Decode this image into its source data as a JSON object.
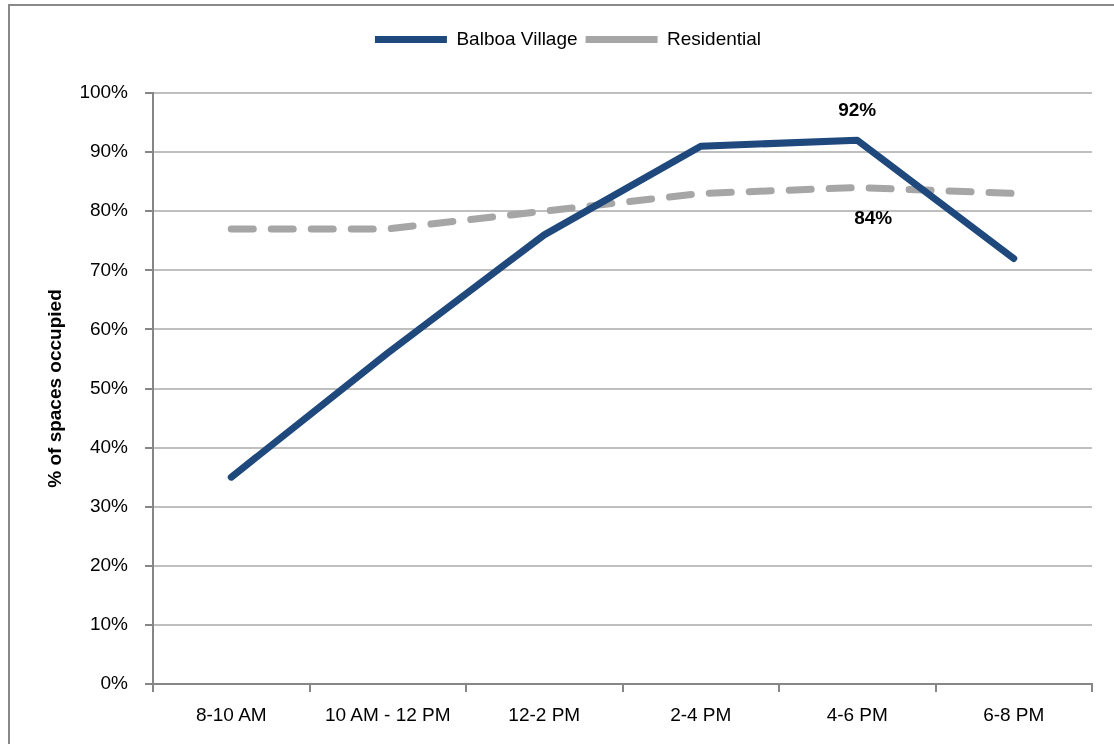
{
  "chart_data": {
    "type": "line",
    "ylabel": "% of spaces occupied",
    "categories": [
      "8-10 AM",
      "10 AM - 12 PM",
      "12-2 PM",
      "2-4 PM",
      "4-6 PM",
      "6-8 PM"
    ],
    "series": [
      {
        "name": "Balboa Village",
        "color": "#1f497d",
        "values": [
          35,
          56,
          76,
          91,
          92,
          72
        ],
        "value_labels": [
          null,
          null,
          null,
          null,
          "92%",
          null
        ]
      },
      {
        "name": "Residential",
        "color": "#a6a6a6",
        "line_style": "dashed",
        "values": [
          77,
          77,
          80,
          83,
          84,
          83
        ],
        "value_labels": [
          null,
          null,
          null,
          null,
          "84%",
          null
        ]
      }
    ],
    "ylim": [
      0,
      100
    ],
    "yticks": [
      {
        "value": 0,
        "label": "0%"
      },
      {
        "value": 10,
        "label": "10%"
      },
      {
        "value": 20,
        "label": "20%"
      },
      {
        "value": 30,
        "label": "30%"
      },
      {
        "value": 40,
        "label": "40%"
      },
      {
        "value": 50,
        "label": "50%"
      },
      {
        "value": 60,
        "label": "60%"
      },
      {
        "value": 70,
        "label": "70%"
      },
      {
        "value": 80,
        "label": "80%"
      },
      {
        "value": 90,
        "label": "90%"
      },
      {
        "value": 100,
        "label": "100%"
      }
    ],
    "grid": "y",
    "legend": "top"
  }
}
